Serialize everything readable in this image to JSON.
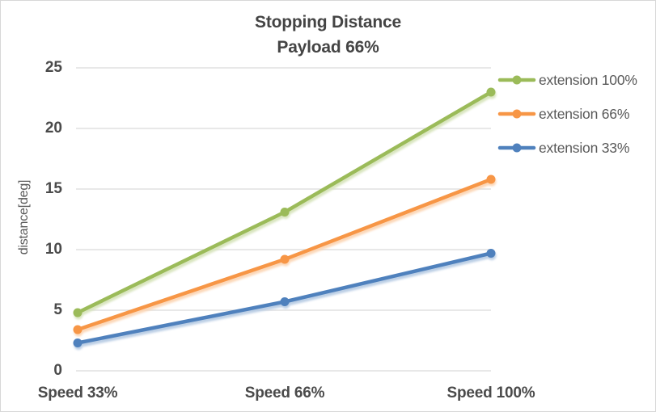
{
  "chart_data": {
    "type": "line",
    "title": "Stopping Distance",
    "subtitle": "Payload 66%",
    "xlabel": "",
    "ylabel": "distance[deg]",
    "categories": [
      "Speed 33%",
      "Speed 66%",
      "Speed 100%"
    ],
    "series": [
      {
        "name": "extension 100%",
        "color": "#9BBB59",
        "halo_color": "#D7E4BC",
        "values": [
          4.8,
          13.1,
          23.0
        ]
      },
      {
        "name": "extension 66%",
        "color": "#F79646",
        "halo_color": "#FCD5B4",
        "values": [
          3.4,
          9.2,
          15.8
        ]
      },
      {
        "name": "extension 33%",
        "color": "#4F81BD",
        "halo_color": "#B8CCE4",
        "values": [
          2.3,
          5.7,
          9.7
        ]
      }
    ],
    "ylim": [
      0,
      25
    ],
    "ytick_step": 5,
    "yticks": [
      0,
      5,
      10,
      15,
      20,
      25
    ],
    "grid": true,
    "gridline_color": "#D9D9D9",
    "legend_position": "right",
    "marker": "circle",
    "title_color": "#444444",
    "tick_label_color": "#4A4A4A",
    "legend_text_color": "#595959",
    "background_color": "#FFFFFF",
    "border_color": "#D7D7D7"
  }
}
